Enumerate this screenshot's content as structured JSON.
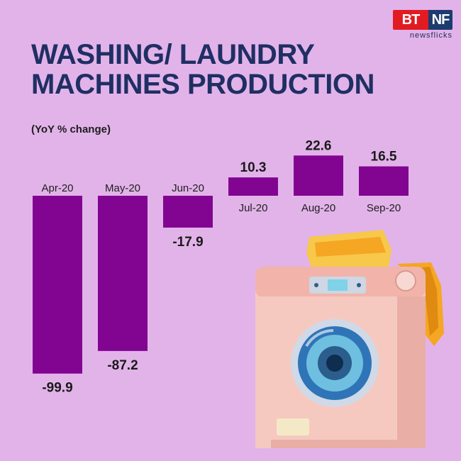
{
  "brand": {
    "logo_main": "BT",
    "logo_nf": "NF",
    "logo_sub": "newsflicks"
  },
  "title": {
    "line1": "WASHING/ LAUNDRY",
    "line2": "MACHINES PRODUCTION"
  },
  "subtitle": "(YoY % change)",
  "colors": {
    "background": "#e2b3e9",
    "bar": "#820592",
    "title": "#1f2f63"
  },
  "chart_data": {
    "type": "bar",
    "categories": [
      "Apr-20",
      "May-20",
      "Jun-20",
      "Jul-20",
      "Aug-20",
      "Sep-20"
    ],
    "values": [
      -99.9,
      -87.2,
      -17.9,
      10.3,
      22.6,
      16.5
    ],
    "value_labels": [
      "-99.9",
      "-87.2",
      "-17.9",
      "10.3",
      "22.6",
      "16.5"
    ],
    "title": "WASHING/ LAUNDRY MACHINES PRODUCTION",
    "ylabel": "(YoY % change)",
    "xlabel": "",
    "ylim": [
      -100,
      25
    ],
    "grid": false,
    "legend": "none"
  },
  "illustration": "washing-machine"
}
